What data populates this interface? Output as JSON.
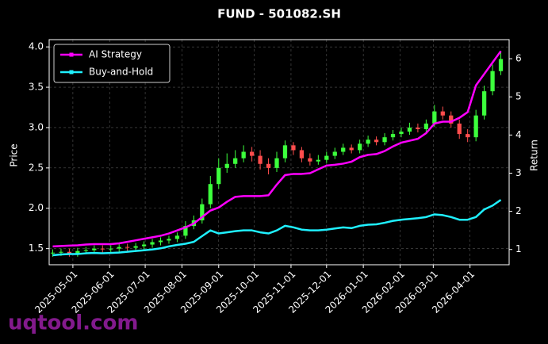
{
  "chart_data": {
    "type": "candlestick",
    "title": "FUND - 501082.SH",
    "ylabel": "Price",
    "y2label": "Return",
    "watermark": "uqtool.com",
    "x": [
      "2025-04-14",
      "2025-04-21",
      "2025-04-28",
      "2025-05-05",
      "2025-05-12",
      "2025-05-19",
      "2025-05-26",
      "2025-06-02",
      "2025-06-09",
      "2025-06-16",
      "2025-06-23",
      "2025-06-30",
      "2025-07-07",
      "2025-07-14",
      "2025-07-21",
      "2025-07-28",
      "2025-08-04",
      "2025-08-11",
      "2025-08-18",
      "2025-08-25",
      "2025-09-01",
      "2025-09-08",
      "2025-09-15",
      "2025-09-22",
      "2025-09-29",
      "2025-10-06",
      "2025-10-13",
      "2025-10-20",
      "2025-10-27",
      "2025-11-03",
      "2025-11-10",
      "2025-11-17",
      "2025-11-24",
      "2025-12-01",
      "2025-12-08",
      "2025-12-15",
      "2025-12-22",
      "2025-12-29",
      "2026-01-05",
      "2026-01-12",
      "2026-01-19",
      "2026-01-26",
      "2026-02-02",
      "2026-02-09",
      "2026-02-16",
      "2026-02-23",
      "2026-03-02",
      "2026-03-09",
      "2026-03-16",
      "2026-03-23",
      "2026-03-30",
      "2026-04-06",
      "2026-04-13",
      "2026-04-20",
      "2026-04-27"
    ],
    "open": [
      1.44,
      1.45,
      1.46,
      1.44,
      1.47,
      1.48,
      1.5,
      1.49,
      1.5,
      1.52,
      1.51,
      1.53,
      1.55,
      1.58,
      1.6,
      1.62,
      1.66,
      1.78,
      1.85,
      2.05,
      2.3,
      2.5,
      2.55,
      2.62,
      2.7,
      2.65,
      2.55,
      2.5,
      2.62,
      2.78,
      2.72,
      2.62,
      2.58,
      2.6,
      2.65,
      2.7,
      2.75,
      2.72,
      2.8,
      2.85,
      2.82,
      2.88,
      2.92,
      2.95,
      3.0,
      2.98,
      3.05,
      3.2,
      3.15,
      3.05,
      2.92,
      2.88,
      3.15,
      3.45,
      3.7
    ],
    "high": [
      1.49,
      1.5,
      1.5,
      1.51,
      1.52,
      1.54,
      1.54,
      1.54,
      1.56,
      1.56,
      1.57,
      1.59,
      1.62,
      1.64,
      1.66,
      1.7,
      1.84,
      1.91,
      2.12,
      2.4,
      2.62,
      2.68,
      2.72,
      2.78,
      2.76,
      2.72,
      2.62,
      2.7,
      2.84,
      2.82,
      2.76,
      2.68,
      2.66,
      2.7,
      2.75,
      2.8,
      2.79,
      2.85,
      2.9,
      2.89,
      2.93,
      2.97,
      3.0,
      3.06,
      3.05,
      3.1,
      3.28,
      3.26,
      3.2,
      3.1,
      2.98,
      3.22,
      3.52,
      3.78,
      3.94
    ],
    "low": [
      1.4,
      1.41,
      1.4,
      1.4,
      1.43,
      1.44,
      1.45,
      1.45,
      1.46,
      1.47,
      1.47,
      1.49,
      1.51,
      1.54,
      1.56,
      1.58,
      1.62,
      1.74,
      1.81,
      2.0,
      2.24,
      2.44,
      2.5,
      2.57,
      2.58,
      2.48,
      2.42,
      2.45,
      2.57,
      2.66,
      2.57,
      2.53,
      2.54,
      2.56,
      2.61,
      2.66,
      2.68,
      2.68,
      2.76,
      2.78,
      2.78,
      2.84,
      2.88,
      2.91,
      2.94,
      2.94,
      3.01,
      3.1,
      3.0,
      2.86,
      2.82,
      2.83,
      3.1,
      3.4,
      3.65
    ],
    "close": [
      1.45,
      1.46,
      1.44,
      1.47,
      1.48,
      1.5,
      1.49,
      1.5,
      1.52,
      1.51,
      1.53,
      1.55,
      1.58,
      1.6,
      1.62,
      1.66,
      1.78,
      1.85,
      2.05,
      2.3,
      2.5,
      2.55,
      2.62,
      2.7,
      2.65,
      2.55,
      2.5,
      2.62,
      2.78,
      2.72,
      2.62,
      2.58,
      2.6,
      2.65,
      2.7,
      2.75,
      2.72,
      2.8,
      2.85,
      2.82,
      2.88,
      2.92,
      2.95,
      3.0,
      2.98,
      3.05,
      3.2,
      3.15,
      3.05,
      2.92,
      2.88,
      3.15,
      3.45,
      3.7,
      3.85
    ],
    "up_color": "#3cff3c",
    "down_color": "#ff4d4d",
    "series": [
      {
        "name": "AI Strategy",
        "color": "#ff00ff",
        "axis": "y2",
        "values": [
          1.08,
          1.09,
          1.1,
          1.11,
          1.13,
          1.14,
          1.14,
          1.14,
          1.16,
          1.2,
          1.24,
          1.28,
          1.32,
          1.36,
          1.42,
          1.5,
          1.58,
          1.68,
          1.85,
          2.02,
          2.1,
          2.25,
          2.38,
          2.4,
          2.4,
          2.4,
          2.42,
          2.7,
          2.95,
          2.98,
          2.98,
          3.0,
          3.1,
          3.2,
          3.22,
          3.25,
          3.3,
          3.42,
          3.48,
          3.5,
          3.58,
          3.7,
          3.8,
          3.85,
          3.9,
          4.05,
          4.3,
          4.35,
          4.35,
          4.45,
          4.6,
          5.3,
          5.6,
          5.9,
          6.2
        ]
      },
      {
        "name": "Buy-and-Hold",
        "color": "#1ff0ff",
        "axis": "y2",
        "values": [
          0.85,
          0.87,
          0.88,
          0.88,
          0.9,
          0.91,
          0.9,
          0.91,
          0.92,
          0.94,
          0.96,
          0.98,
          1.0,
          1.03,
          1.08,
          1.12,
          1.15,
          1.2,
          1.35,
          1.5,
          1.42,
          1.45,
          1.48,
          1.5,
          1.5,
          1.45,
          1.42,
          1.5,
          1.62,
          1.58,
          1.52,
          1.5,
          1.5,
          1.52,
          1.55,
          1.58,
          1.56,
          1.62,
          1.65,
          1.66,
          1.7,
          1.75,
          1.78,
          1.8,
          1.82,
          1.85,
          1.92,
          1.9,
          1.85,
          1.78,
          1.78,
          1.85,
          2.05,
          2.15,
          2.3
        ]
      }
    ],
    "xlim": [
      "2025-04-11",
      "2026-05-04"
    ],
    "xticks": [
      "2025-05-01",
      "2025-06-01",
      "2025-07-01",
      "2025-08-01",
      "2025-09-01",
      "2025-10-01",
      "2025-11-01",
      "2025-12-01",
      "2026-01-01",
      "2026-02-01",
      "2026-03-01",
      "2026-04-01"
    ],
    "ylim": [
      1.3,
      4.09
    ],
    "yticks": [
      1.5,
      {
        "value": 2,
        "label": "2.0"
      },
      2.5,
      {
        "value": 3,
        "label": "3.0"
      },
      3.5,
      {
        "value": 4,
        "label": "4.0"
      }
    ],
    "y2lim": [
      0.6,
      6.5
    ],
    "y2ticks": [
      1,
      2,
      3,
      4,
      5,
      6
    ],
    "grid": true,
    "legend": "upper left"
  }
}
